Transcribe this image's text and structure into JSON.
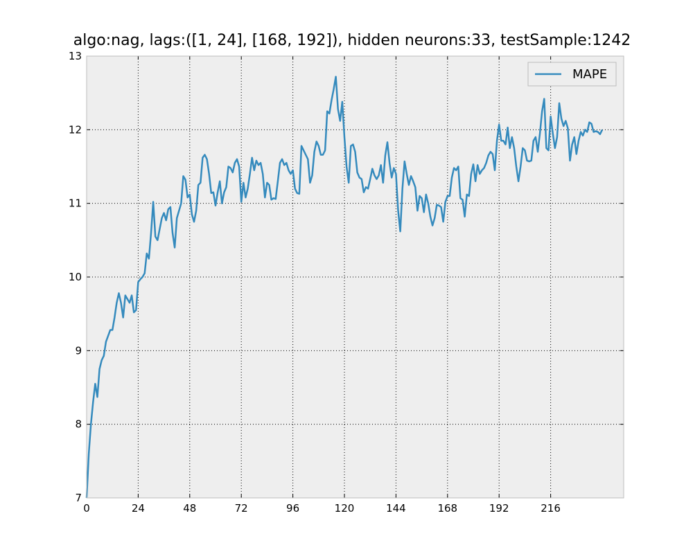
{
  "chart_data": {
    "type": "line",
    "title": "algo:nag, lags:([1, 24], [168, 192]), hidden neurons:33, testSample:1242",
    "x": [
      0,
      1,
      2,
      3,
      4,
      5,
      6,
      7,
      8,
      9,
      10,
      11,
      12,
      13,
      14,
      15,
      16,
      17,
      18,
      19,
      20,
      21,
      22,
      23,
      24,
      25,
      26,
      27,
      28,
      29,
      30,
      31,
      32,
      33,
      34,
      35,
      36,
      37,
      38,
      39,
      40,
      41,
      42,
      43,
      44,
      45,
      46,
      47,
      48,
      49,
      50,
      51,
      52,
      53,
      54,
      55,
      56,
      57,
      58,
      59,
      60,
      61,
      62,
      63,
      64,
      65,
      66,
      67,
      68,
      69,
      70,
      71,
      72,
      73,
      74,
      75,
      76,
      77,
      78,
      79,
      80,
      81,
      82,
      83,
      84,
      85,
      86,
      87,
      88,
      89,
      90,
      91,
      92,
      93,
      94,
      95,
      96,
      97,
      98,
      99,
      100,
      101,
      102,
      103,
      104,
      105,
      106,
      107,
      108,
      109,
      110,
      111,
      112,
      113,
      114,
      115,
      116,
      117,
      118,
      119,
      120,
      121,
      122,
      123,
      124,
      125,
      126,
      127,
      128,
      129,
      130,
      131,
      132,
      133,
      134,
      135,
      136,
      137,
      138,
      139,
      140,
      141,
      142,
      143,
      144,
      145,
      146,
      147,
      148,
      149,
      150,
      151,
      152,
      153,
      154,
      155,
      156,
      157,
      158,
      159,
      160,
      161,
      162,
      163,
      164,
      165,
      166,
      167,
      168,
      169,
      170,
      171,
      172,
      173,
      174,
      175,
      176,
      177,
      178,
      179,
      180,
      181,
      182,
      183,
      184,
      185,
      186,
      187,
      188,
      189,
      190,
      191,
      192,
      193,
      194,
      195,
      196,
      197,
      198,
      199,
      200,
      201,
      202,
      203,
      204,
      205,
      206,
      207,
      208,
      209,
      210,
      211,
      212,
      213,
      214,
      215,
      216,
      217,
      218,
      219,
      220,
      221,
      222,
      223,
      224,
      225,
      226,
      227,
      228,
      229,
      230,
      231,
      232,
      233,
      234,
      235,
      236,
      237,
      238,
      239,
      240
    ],
    "series": [
      {
        "name": "MAPE",
        "color": "#348abd",
        "values": [
          7.0,
          7.6,
          8.0,
          8.3,
          8.55,
          8.37,
          8.75,
          8.87,
          8.93,
          9.12,
          9.2,
          9.28,
          9.28,
          9.45,
          9.65,
          9.78,
          9.65,
          9.45,
          9.75,
          9.7,
          9.65,
          9.75,
          9.52,
          9.55,
          9.93,
          9.97,
          10.0,
          10.05,
          10.32,
          10.25,
          10.6,
          11.02,
          10.55,
          10.5,
          10.65,
          10.8,
          10.87,
          10.77,
          10.92,
          10.95,
          10.6,
          10.4,
          10.8,
          10.9,
          11.0,
          11.37,
          11.32,
          11.08,
          11.12,
          10.85,
          10.75,
          10.9,
          11.25,
          11.28,
          11.62,
          11.66,
          11.6,
          11.4,
          11.14,
          11.15,
          10.97,
          11.15,
          11.3,
          11.0,
          11.15,
          11.22,
          11.5,
          11.48,
          11.42,
          11.55,
          11.6,
          11.5,
          11.02,
          11.28,
          11.08,
          11.2,
          11.4,
          11.62,
          11.45,
          11.58,
          11.52,
          11.55,
          11.4,
          11.08,
          11.28,
          11.25,
          11.05,
          11.07,
          11.06,
          11.3,
          11.55,
          11.6,
          11.52,
          11.55,
          11.45,
          11.4,
          11.45,
          11.2,
          11.14,
          11.13,
          11.78,
          11.72,
          11.66,
          11.6,
          11.28,
          11.38,
          11.7,
          11.84,
          11.78,
          11.66,
          11.66,
          11.72,
          12.25,
          12.22,
          12.4,
          12.55,
          12.72,
          12.28,
          12.12,
          12.38,
          11.9,
          11.5,
          11.28,
          11.78,
          11.8,
          11.7,
          11.42,
          11.35,
          11.33,
          11.15,
          11.22,
          11.2,
          11.33,
          11.47,
          11.38,
          11.33,
          11.38,
          11.52,
          11.28,
          11.65,
          11.83,
          11.55,
          11.35,
          11.48,
          11.4,
          10.9,
          10.62,
          11.2,
          11.57,
          11.4,
          11.25,
          11.37,
          11.3,
          11.22,
          10.9,
          11.1,
          11.07,
          10.88,
          11.12,
          11.0,
          10.82,
          10.7,
          10.8,
          10.98,
          10.97,
          10.95,
          10.75,
          11.02,
          11.1,
          11.1,
          11.35,
          11.48,
          11.45,
          11.5,
          11.07,
          11.05,
          10.82,
          11.12,
          11.1,
          11.4,
          11.53,
          11.3,
          11.52,
          11.4,
          11.45,
          11.48,
          11.55,
          11.65,
          11.7,
          11.67,
          11.45,
          11.85,
          12.07,
          11.85,
          11.85,
          11.8,
          12.03,
          11.75,
          11.9,
          11.75,
          11.5,
          11.3,
          11.5,
          11.75,
          11.72,
          11.58,
          11.57,
          11.58,
          11.85,
          11.9,
          11.7,
          11.95,
          12.25,
          12.42,
          11.75,
          11.72,
          12.18,
          11.95,
          11.75,
          11.9,
          12.36,
          12.15,
          12.05,
          12.12,
          12.02,
          11.58,
          11.8,
          11.9,
          11.67,
          11.85,
          11.97,
          11.92,
          12.0,
          11.97,
          12.1,
          12.08,
          11.97,
          11.98,
          11.97,
          11.94,
          12.0
        ]
      }
    ],
    "xlim": [
      0,
      250
    ],
    "xticks": [
      0,
      24,
      48,
      72,
      96,
      120,
      144,
      168,
      192,
      216
    ],
    "ylim": [
      7,
      13
    ],
    "yticks": [
      7,
      8,
      9,
      10,
      11,
      12,
      13
    ],
    "grid": true,
    "legend": "upper right"
  }
}
